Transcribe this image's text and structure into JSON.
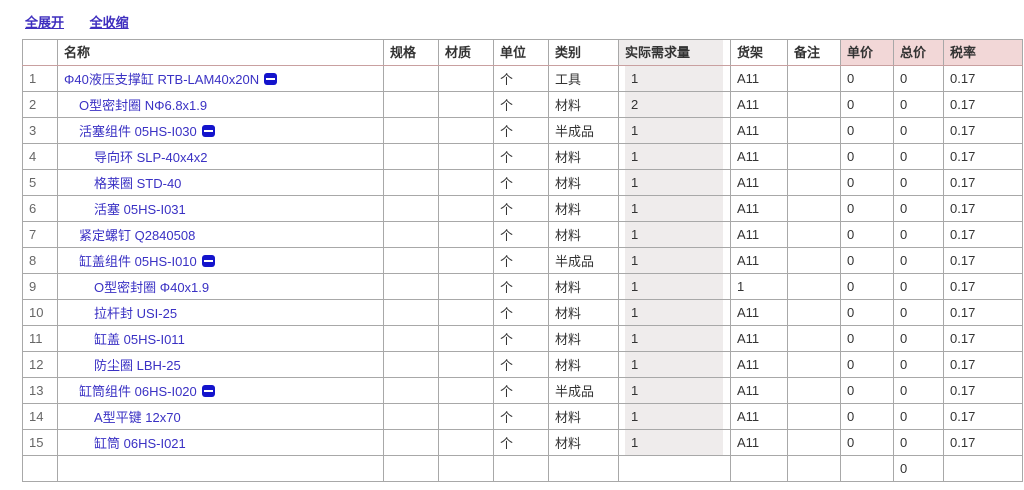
{
  "toolbar": {
    "expand_all": "全展开",
    "collapse_all": "全收缩"
  },
  "table": {
    "columns": [
      "",
      "名称",
      "规格",
      "材质",
      "单位",
      "类别",
      "实际需求量",
      "货架",
      "备注",
      "单价",
      "总价",
      "税率"
    ],
    "pink_columns": [
      9,
      10,
      11
    ],
    "shaded_column": 6,
    "rows": [
      {
        "num": "1",
        "name": "Φ40液压支撑缸 RTB-LAM40x20N",
        "indent": 0,
        "expandable": true,
        "spec": "",
        "material": "",
        "unit": "个",
        "category": "工具",
        "qty": "1",
        "shelf": "A11",
        "note": "",
        "price": "0",
        "total": "0",
        "tax": "0.17"
      },
      {
        "num": "2",
        "name": "O型密封圈 NΦ6.8x1.9",
        "indent": 1,
        "expandable": false,
        "spec": "",
        "material": "",
        "unit": "个",
        "category": "材料",
        "qty": "2",
        "shelf": "A11",
        "note": "",
        "price": "0",
        "total": "0",
        "tax": "0.17"
      },
      {
        "num": "3",
        "name": "活塞组件 05HS-I030",
        "indent": 1,
        "expandable": true,
        "spec": "",
        "material": "",
        "unit": "个",
        "category": "半成品",
        "qty": "1",
        "shelf": "A11",
        "note": "",
        "price": "0",
        "total": "0",
        "tax": "0.17"
      },
      {
        "num": "4",
        "name": "导向环 SLP-40x4x2",
        "indent": 2,
        "expandable": false,
        "spec": "",
        "material": "",
        "unit": "个",
        "category": "材料",
        "qty": "1",
        "shelf": "A11",
        "note": "",
        "price": "0",
        "total": "0",
        "tax": "0.17"
      },
      {
        "num": "5",
        "name": "格莱圈 STD-40",
        "indent": 2,
        "expandable": false,
        "spec": "",
        "material": "",
        "unit": "个",
        "category": "材料",
        "qty": "1",
        "shelf": "A11",
        "note": "",
        "price": "0",
        "total": "0",
        "tax": "0.17"
      },
      {
        "num": "6",
        "name": "活塞 05HS-I031",
        "indent": 2,
        "expandable": false,
        "spec": "",
        "material": "",
        "unit": "个",
        "category": "材料",
        "qty": "1",
        "shelf": "A11",
        "note": "",
        "price": "0",
        "total": "0",
        "tax": "0.17"
      },
      {
        "num": "7",
        "name": "紧定螺钉 Q2840508",
        "indent": 1,
        "expandable": false,
        "spec": "",
        "material": "",
        "unit": "个",
        "category": "材料",
        "qty": "1",
        "shelf": "A11",
        "note": "",
        "price": "0",
        "total": "0",
        "tax": "0.17"
      },
      {
        "num": "8",
        "name": "缸盖组件 05HS-I010",
        "indent": 1,
        "expandable": true,
        "spec": "",
        "material": "",
        "unit": "个",
        "category": "半成品",
        "qty": "1",
        "shelf": "A11",
        "note": "",
        "price": "0",
        "total": "0",
        "tax": "0.17"
      },
      {
        "num": "9",
        "name": "O型密封圈 Φ40x1.9",
        "indent": 2,
        "expandable": false,
        "spec": "",
        "material": "",
        "unit": "个",
        "category": "材料",
        "qty": "1",
        "shelf": "1",
        "note": "",
        "price": "0",
        "total": "0",
        "tax": "0.17"
      },
      {
        "num": "10",
        "name": "拉杆封 USI-25",
        "indent": 2,
        "expandable": false,
        "spec": "",
        "material": "",
        "unit": "个",
        "category": "材料",
        "qty": "1",
        "shelf": "A11",
        "note": "",
        "price": "0",
        "total": "0",
        "tax": "0.17"
      },
      {
        "num": "11",
        "name": "缸盖 05HS-I011",
        "indent": 2,
        "expandable": false,
        "spec": "",
        "material": "",
        "unit": "个",
        "category": "材料",
        "qty": "1",
        "shelf": "A11",
        "note": "",
        "price": "0",
        "total": "0",
        "tax": "0.17"
      },
      {
        "num": "12",
        "name": "防尘圈 LBH-25",
        "indent": 2,
        "expandable": false,
        "spec": "",
        "material": "",
        "unit": "个",
        "category": "材料",
        "qty": "1",
        "shelf": "A11",
        "note": "",
        "price": "0",
        "total": "0",
        "tax": "0.17"
      },
      {
        "num": "13",
        "name": "缸筒组件 06HS-I020",
        "indent": 1,
        "expandable": true,
        "spec": "",
        "material": "",
        "unit": "个",
        "category": "半成品",
        "qty": "1",
        "shelf": "A11",
        "note": "",
        "price": "0",
        "total": "0",
        "tax": "0.17"
      },
      {
        "num": "14",
        "name": "A型平键 12x70",
        "indent": 2,
        "expandable": false,
        "spec": "",
        "material": "",
        "unit": "个",
        "category": "材料",
        "qty": "1",
        "shelf": "A11",
        "note": "",
        "price": "0",
        "total": "0",
        "tax": "0.17"
      },
      {
        "num": "15",
        "name": "缸筒 06HS-I021",
        "indent": 2,
        "expandable": false,
        "spec": "",
        "material": "",
        "unit": "个",
        "category": "材料",
        "qty": "1",
        "shelf": "A11",
        "note": "",
        "price": "0",
        "total": "0",
        "tax": "0.17"
      },
      {
        "num": "",
        "name": "",
        "indent": 0,
        "expandable": false,
        "spec": "",
        "material": "",
        "unit": "",
        "category": "",
        "qty": "",
        "shelf": "",
        "note": "",
        "price": "",
        "total": "0",
        "tax": ""
      }
    ]
  },
  "colors": {
    "link": "#3a31c4",
    "toolbar_link": "#3f2fbf",
    "collapse_icon_bg": "#1414cc",
    "pink_header_bg": "#f2d7d7",
    "pink_header_text": "#5e3030",
    "qty_cell_bg": "#efecec",
    "grid_border": "#a8a8a8",
    "header_bottom_border": "#c9a0a0",
    "row_number_text": "#666666"
  }
}
